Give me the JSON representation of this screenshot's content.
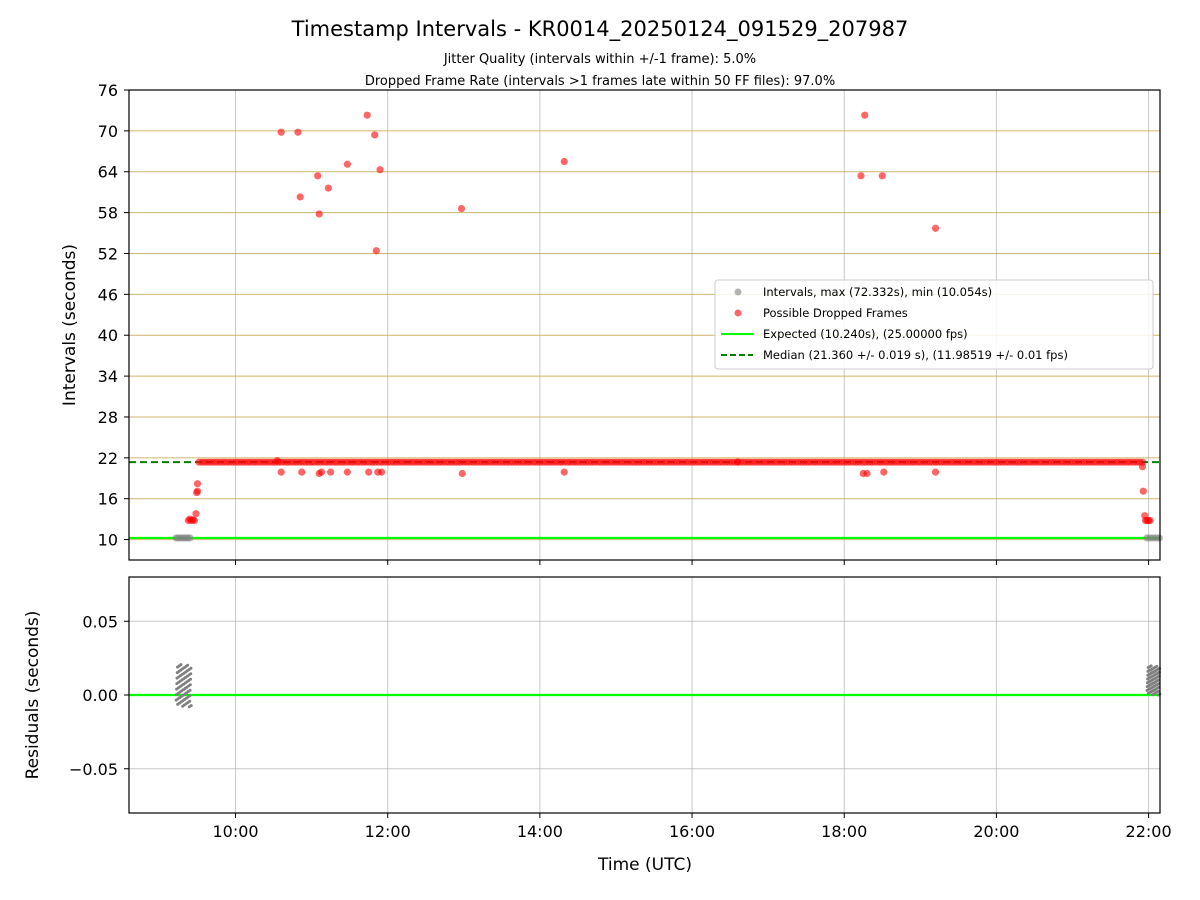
{
  "chart_data": {
    "type": "scatter",
    "title": "Timestamp Intervals - KR0014_20250124_091529_207987",
    "subtitles": [
      "Jitter Quality (intervals within +/-1 frame): 5.0%",
      "Dropped Frame Rate (intervals >1 frames late within 50 FF files): 97.0%"
    ],
    "xlabel": "Time (UTC)",
    "xticks": [
      "10:00",
      "12:00",
      "14:00",
      "16:00",
      "18:00",
      "20:00",
      "22:00"
    ],
    "xlim_hours": [
      8.6,
      22.15
    ],
    "grid": true,
    "panels": [
      {
        "ylabel": "Intervals (seconds)",
        "ylim": [
          7,
          76
        ],
        "yticks": [
          "10",
          "16",
          "22",
          "28",
          "34",
          "40",
          "46",
          "52",
          "58",
          "64",
          "70",
          "76"
        ],
        "expected_interval": 10.24,
        "median_interval": 21.36,
        "legend": {
          "placement": "center-right",
          "entries": [
            "Intervals, max (72.332s), min (10.054s)",
            "Possible Dropped Frames",
            "Expected (10.240s), (25.00000 fps)",
            "Median (21.360 +/- 0.019 s), (11.98519 +/- 0.01 fps)"
          ]
        },
        "series": [
          {
            "name": "Intervals, max (72.332s), min (10.054s)",
            "color": "#808080",
            "points": [
              [
                9.22,
                10.24
              ],
              [
                9.25,
                10.24
              ],
              [
                9.28,
                10.24
              ],
              [
                9.31,
                10.24
              ],
              [
                9.34,
                10.24
              ],
              [
                9.37,
                10.24
              ],
              [
                9.4,
                10.24
              ],
              [
                21.98,
                10.24
              ],
              [
                22.02,
                10.24
              ],
              [
                22.06,
                10.24
              ],
              [
                22.1,
                10.24
              ],
              [
                22.14,
                10.24
              ]
            ]
          },
          {
            "name": "Possible Dropped Frames",
            "color": "#ff0000",
            "points": [
              [
                9.38,
                12.8
              ],
              [
                9.4,
                13.0
              ],
              [
                9.42,
                12.8
              ],
              [
                9.44,
                12.9
              ],
              [
                9.46,
                12.8
              ],
              [
                9.48,
                13.8
              ],
              [
                9.49,
                16.9
              ],
              [
                9.5,
                17.1
              ],
              [
                9.5,
                18.2
              ],
              [
                10.55,
                21.6
              ],
              [
                10.6,
                19.9
              ],
              [
                10.6,
                69.8
              ],
              [
                10.82,
                69.8
              ],
              [
                10.85,
                60.3
              ],
              [
                10.87,
                19.9
              ],
              [
                11.08,
                63.4
              ],
              [
                11.1,
                57.8
              ],
              [
                11.1,
                19.7
              ],
              [
                11.13,
                19.9
              ],
              [
                11.22,
                61.6
              ],
              [
                11.25,
                19.9
              ],
              [
                11.47,
                65.1
              ],
              [
                11.47,
                19.9
              ],
              [
                11.73,
                72.3
              ],
              [
                11.75,
                19.9
              ],
              [
                11.83,
                69.4
              ],
              [
                11.85,
                52.4
              ],
              [
                11.87,
                19.9
              ],
              [
                11.9,
                64.3
              ],
              [
                11.92,
                19.9
              ],
              [
                12.97,
                58.6
              ],
              [
                12.98,
                19.7
              ],
              [
                14.32,
                65.5
              ],
              [
                14.32,
                19.9
              ],
              [
                16.6,
                21.4
              ],
              [
                18.22,
                63.4
              ],
              [
                18.25,
                19.7
              ],
              [
                18.27,
                72.3
              ],
              [
                18.3,
                19.7
              ],
              [
                18.5,
                63.4
              ],
              [
                18.52,
                19.9
              ],
              [
                19.2,
                55.7
              ],
              [
                19.2,
                19.9
              ],
              [
                21.92,
                20.7
              ],
              [
                21.93,
                17.1
              ],
              [
                21.95,
                13.5
              ],
              [
                21.96,
                12.8
              ],
              [
                21.98,
                12.8
              ],
              [
                22.0,
                12.8
              ],
              [
                22.02,
                12.8
              ]
            ]
          }
        ]
      },
      {
        "ylabel": "Residuals (seconds)",
        "ylim": [
          -0.08,
          0.08
        ],
        "yticks": [
          "0.05",
          "0.00",
          "−0.05"
        ],
        "series": [
          {
            "name": "Residuals",
            "color": "#808080",
            "clusters": [
              {
                "x_start": 9.22,
                "x_end": 9.42,
                "y_min": -0.008,
                "y_max": 0.021
              },
              {
                "x_start": 21.98,
                "x_end": 22.15,
                "y_min": 0.0,
                "y_max": 0.02
              }
            ]
          }
        ]
      }
    ]
  }
}
